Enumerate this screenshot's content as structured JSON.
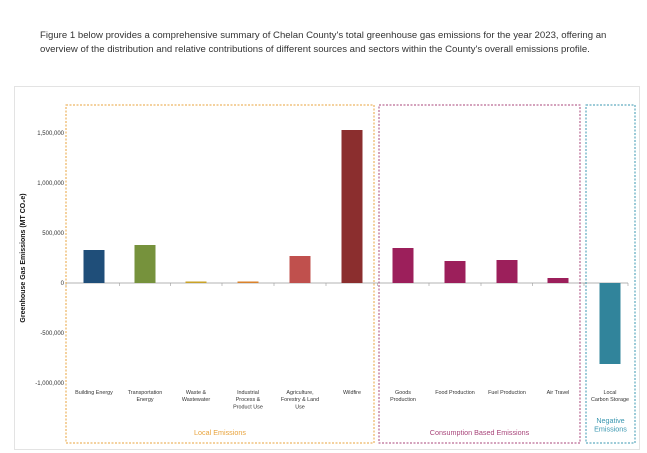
{
  "intro_text": "Figure 1 below provides a comprehensive summary of Chelan County's total greenhouse gas emissions for the year 2023, offering an overview of the distribution and relative contributions of different sources and sectors within the County's overall emissions profile.",
  "chart_data": {
    "type": "bar",
    "title": "",
    "xlabel": "",
    "ylabel": "Greenhouse Gas Emissions (MT CO₂e)",
    "ylim": [
      -1000000,
      1500000
    ],
    "yticks": [
      -1000000,
      -500000,
      0,
      500000,
      1000000,
      1500000
    ],
    "ytick_labels": [
      "-1,000,000",
      "-500,000",
      "0",
      "500,000",
      "1,000,000",
      "1,500,000"
    ],
    "grid": false,
    "legend": "none",
    "categories": [
      [
        "Building Energy"
      ],
      [
        "Transportation",
        "Energy"
      ],
      [
        "Waste &",
        "Wastewater"
      ],
      [
        "Industrial",
        "Process &",
        "Product Use"
      ],
      [
        "Agriculture,",
        "Forestry & Land",
        "Use"
      ],
      [
        "Wildfire"
      ],
      [
        "Goods",
        "Production"
      ],
      [
        "Food Production"
      ],
      [
        "Fuel Production"
      ],
      [
        "Air Travel"
      ],
      [
        "Local",
        "Carbon Storage"
      ]
    ],
    "values": [
      330000,
      380000,
      15000,
      15000,
      270000,
      1530000,
      350000,
      220000,
      230000,
      50000,
      -810000
    ],
    "colors": [
      "#1f4e79",
      "#76923c",
      "#c9a227",
      "#d9822b",
      "#c0504d",
      "#8b2e2e",
      "#9c1f5b",
      "#9c1f5b",
      "#9c1f5b",
      "#9c1f5b",
      "#31849b"
    ],
    "groups": [
      {
        "label": "Local Emissions",
        "lines": [
          "Local Emissions"
        ],
        "first": 0,
        "last": 5,
        "color": "#e8a33c"
      },
      {
        "label": "Consumption Based Emissions",
        "lines": [
          "Consumption Based Emissions"
        ],
        "first": 6,
        "last": 9,
        "color": "#a8457a"
      },
      {
        "label": "Negative Emissions",
        "lines": [
          "Negative",
          "Emissions"
        ],
        "first": 10,
        "last": 10,
        "color": "#3a97b0"
      }
    ]
  }
}
